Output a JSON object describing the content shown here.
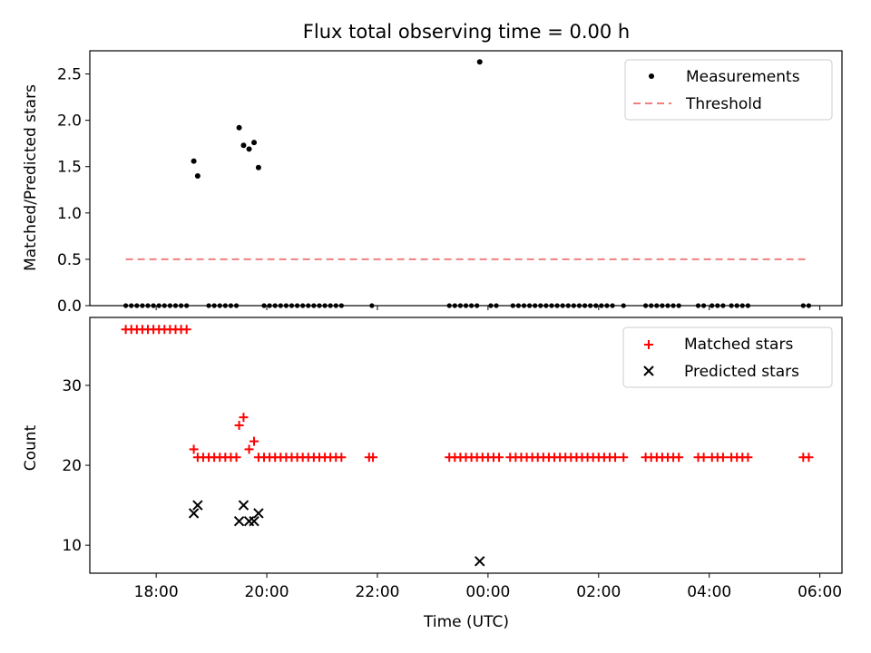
{
  "chart_data": [
    {
      "type": "scatter",
      "title": "Flux total observing time = 0.00 h",
      "xlabel": "",
      "ylabel": "Matched/Predicted stars",
      "xlim": [
        16.8,
        30.4
      ],
      "ylim": [
        0,
        2.75
      ],
      "yticks": [
        0.0,
        0.5,
        1.0,
        1.5,
        2.0,
        2.5
      ],
      "ytick_labels": [
        "0.0",
        "0.5",
        "1.0",
        "1.5",
        "2.0",
        "2.5"
      ],
      "legend_position": "top-right",
      "legend": [
        {
          "label": "Measurements",
          "marker": "dot",
          "color": "#000000"
        },
        {
          "label": "Threshold",
          "marker": "dashed-line",
          "color": "#f08080"
        }
      ],
      "threshold": {
        "y": 0.5,
        "x_range": [
          17.45,
          29.75
        ],
        "color": "#f08080"
      },
      "zero_cluster_x": [
        17.45,
        17.55,
        17.65,
        17.75,
        17.85,
        17.95,
        18.05,
        18.15,
        18.25,
        18.35,
        18.45,
        18.55,
        18.95,
        19.05,
        19.15,
        19.25,
        19.35,
        19.45,
        19.95,
        20.05,
        20.15,
        20.25,
        20.35,
        20.45,
        20.55,
        20.65,
        20.75,
        20.85,
        20.95,
        21.05,
        21.15,
        21.25,
        21.35,
        21.9,
        23.3,
        23.4,
        23.5,
        23.6,
        23.7,
        23.8,
        24.05,
        24.15,
        24.45,
        24.55,
        24.65,
        24.75,
        24.85,
        24.95,
        25.05,
        25.15,
        25.25,
        25.35,
        25.45,
        25.55,
        25.65,
        25.75,
        25.85,
        25.95,
        26.05,
        26.15,
        26.25,
        26.45,
        26.85,
        26.95,
        27.05,
        27.15,
        27.25,
        27.35,
        27.45,
        27.8,
        27.9,
        28.05,
        28.15,
        28.25,
        28.4,
        28.5,
        28.6,
        28.7,
        29.7,
        29.8
      ],
      "measurements": [
        {
          "x": 18.68,
          "y": 1.56
        },
        {
          "x": 18.75,
          "y": 1.4
        },
        {
          "x": 19.5,
          "y": 1.92
        },
        {
          "x": 19.58,
          "y": 1.73
        },
        {
          "x": 19.68,
          "y": 1.69
        },
        {
          "x": 19.77,
          "y": 1.76
        },
        {
          "x": 19.85,
          "y": 1.49
        },
        {
          "x": 23.85,
          "y": 2.63
        }
      ]
    },
    {
      "type": "scatter",
      "title": "",
      "xlabel": "Time (UTC)",
      "ylabel": "Count",
      "xlim": [
        16.8,
        30.4
      ],
      "ylim": [
        6.5,
        38.5
      ],
      "yticks": [
        10,
        20,
        30
      ],
      "ytick_labels": [
        "10",
        "20",
        "30"
      ],
      "xticks": [
        18,
        20,
        22,
        24,
        26,
        28,
        30
      ],
      "xtick_labels": [
        "18:00",
        "20:00",
        "22:00",
        "00:00",
        "02:00",
        "04:00",
        "06:00"
      ],
      "legend_position": "top-right",
      "legend": [
        {
          "label": "Matched stars",
          "marker": "plus",
          "color": "#ff0000"
        },
        {
          "label": "Predicted stars",
          "marker": "x",
          "color": "#000000"
        }
      ],
      "matched_stars": [
        {
          "x": 17.45,
          "y": 37
        },
        {
          "x": 17.55,
          "y": 37
        },
        {
          "x": 17.65,
          "y": 37
        },
        {
          "x": 17.75,
          "y": 37
        },
        {
          "x": 17.85,
          "y": 37
        },
        {
          "x": 17.95,
          "y": 37
        },
        {
          "x": 18.05,
          "y": 37
        },
        {
          "x": 18.15,
          "y": 37
        },
        {
          "x": 18.25,
          "y": 37
        },
        {
          "x": 18.35,
          "y": 37
        },
        {
          "x": 18.45,
          "y": 37
        },
        {
          "x": 18.55,
          "y": 37
        },
        {
          "x": 18.68,
          "y": 22
        },
        {
          "x": 18.75,
          "y": 21
        },
        {
          "x": 18.85,
          "y": 21
        },
        {
          "x": 18.95,
          "y": 21
        },
        {
          "x": 19.05,
          "y": 21
        },
        {
          "x": 19.15,
          "y": 21
        },
        {
          "x": 19.25,
          "y": 21
        },
        {
          "x": 19.35,
          "y": 21
        },
        {
          "x": 19.45,
          "y": 21
        },
        {
          "x": 19.5,
          "y": 25
        },
        {
          "x": 19.58,
          "y": 26
        },
        {
          "x": 19.68,
          "y": 22
        },
        {
          "x": 19.77,
          "y": 23
        },
        {
          "x": 19.85,
          "y": 21
        },
        {
          "x": 19.95,
          "y": 21
        },
        {
          "x": 20.05,
          "y": 21
        },
        {
          "x": 20.15,
          "y": 21
        },
        {
          "x": 20.25,
          "y": 21
        },
        {
          "x": 20.35,
          "y": 21
        },
        {
          "x": 20.45,
          "y": 21
        },
        {
          "x": 20.55,
          "y": 21
        },
        {
          "x": 20.65,
          "y": 21
        },
        {
          "x": 20.75,
          "y": 21
        },
        {
          "x": 20.85,
          "y": 21
        },
        {
          "x": 20.95,
          "y": 21
        },
        {
          "x": 21.05,
          "y": 21
        },
        {
          "x": 21.15,
          "y": 21
        },
        {
          "x": 21.25,
          "y": 21
        },
        {
          "x": 21.35,
          "y": 21
        },
        {
          "x": 21.85,
          "y": 21
        },
        {
          "x": 21.92,
          "y": 21
        },
        {
          "x": 23.3,
          "y": 21
        },
        {
          "x": 23.4,
          "y": 21
        },
        {
          "x": 23.5,
          "y": 21
        },
        {
          "x": 23.6,
          "y": 21
        },
        {
          "x": 23.7,
          "y": 21
        },
        {
          "x": 23.8,
          "y": 21
        },
        {
          "x": 23.9,
          "y": 21
        },
        {
          "x": 24.0,
          "y": 21
        },
        {
          "x": 24.1,
          "y": 21
        },
        {
          "x": 24.2,
          "y": 21
        },
        {
          "x": 24.4,
          "y": 21
        },
        {
          "x": 24.5,
          "y": 21
        },
        {
          "x": 24.6,
          "y": 21
        },
        {
          "x": 24.7,
          "y": 21
        },
        {
          "x": 24.8,
          "y": 21
        },
        {
          "x": 24.9,
          "y": 21
        },
        {
          "x": 25.0,
          "y": 21
        },
        {
          "x": 25.1,
          "y": 21
        },
        {
          "x": 25.2,
          "y": 21
        },
        {
          "x": 25.3,
          "y": 21
        },
        {
          "x": 25.4,
          "y": 21
        },
        {
          "x": 25.5,
          "y": 21
        },
        {
          "x": 25.6,
          "y": 21
        },
        {
          "x": 25.7,
          "y": 21
        },
        {
          "x": 25.8,
          "y": 21
        },
        {
          "x": 25.9,
          "y": 21
        },
        {
          "x": 26.0,
          "y": 21
        },
        {
          "x": 26.1,
          "y": 21
        },
        {
          "x": 26.2,
          "y": 21
        },
        {
          "x": 26.3,
          "y": 21
        },
        {
          "x": 26.45,
          "y": 21
        },
        {
          "x": 26.85,
          "y": 21
        },
        {
          "x": 26.95,
          "y": 21
        },
        {
          "x": 27.05,
          "y": 21
        },
        {
          "x": 27.15,
          "y": 21
        },
        {
          "x": 27.25,
          "y": 21
        },
        {
          "x": 27.35,
          "y": 21
        },
        {
          "x": 27.45,
          "y": 21
        },
        {
          "x": 27.8,
          "y": 21
        },
        {
          "x": 27.9,
          "y": 21
        },
        {
          "x": 28.05,
          "y": 21
        },
        {
          "x": 28.15,
          "y": 21
        },
        {
          "x": 28.25,
          "y": 21
        },
        {
          "x": 28.4,
          "y": 21
        },
        {
          "x": 28.5,
          "y": 21
        },
        {
          "x": 28.6,
          "y": 21
        },
        {
          "x": 28.7,
          "y": 21
        },
        {
          "x": 29.7,
          "y": 21
        },
        {
          "x": 29.8,
          "y": 21
        }
      ],
      "predicted_stars": [
        {
          "x": 18.68,
          "y": 14
        },
        {
          "x": 18.75,
          "y": 15
        },
        {
          "x": 19.5,
          "y": 13
        },
        {
          "x": 19.58,
          "y": 15
        },
        {
          "x": 19.68,
          "y": 13
        },
        {
          "x": 19.77,
          "y": 13
        },
        {
          "x": 19.85,
          "y": 14
        },
        {
          "x": 23.85,
          "y": 8
        }
      ]
    }
  ]
}
